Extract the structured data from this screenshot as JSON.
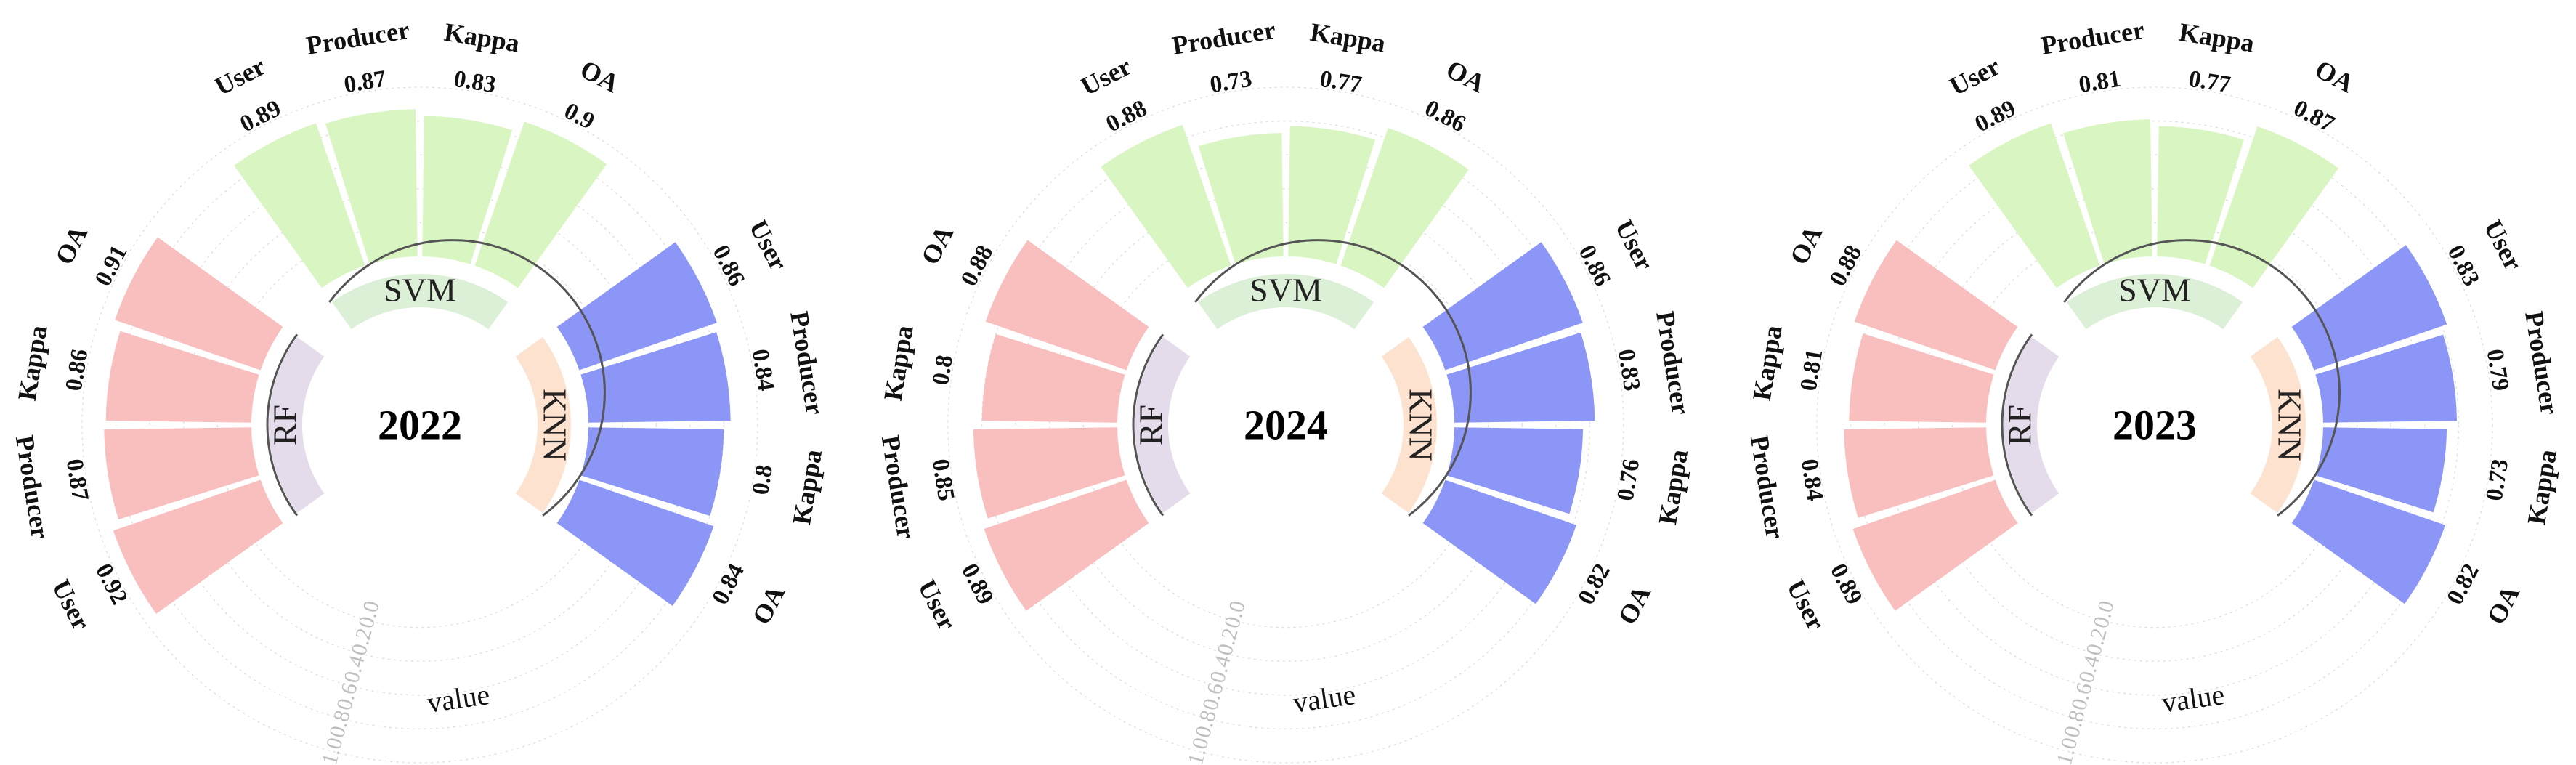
{
  "chart_data": [
    {
      "type": "radial-bar",
      "title": "2022",
      "value_axis": {
        "label": "value",
        "ticks": [
          "0.0",
          "0.2",
          "0.4",
          "0.6",
          "0.8",
          "1.0"
        ],
        "range": [
          0,
          1
        ]
      },
      "groups": [
        {
          "name": "SVM",
          "color": "#d9f5c2",
          "inner_color": "#dcf0d8",
          "bars": [
            {
              "metric": "User",
              "value": 0.89,
              "label": "0.89"
            },
            {
              "metric": "Producer",
              "value": 0.87,
              "label": "0.87"
            },
            {
              "metric": "Kappa",
              "value": 0.83,
              "label": "0.83"
            },
            {
              "metric": "OA",
              "value": 0.9,
              "label": "0.9"
            }
          ]
        },
        {
          "name": "KNN",
          "color": "#8c96f6",
          "inner_color": "#fde2cf",
          "bars": [
            {
              "metric": "User",
              "value": 0.86,
              "label": "0.86"
            },
            {
              "metric": "Producer",
              "value": 0.84,
              "label": "0.84"
            },
            {
              "metric": "Kappa",
              "value": 0.8,
              "label": "0.8"
            },
            {
              "metric": "OA",
              "value": 0.84,
              "label": "0.84"
            }
          ]
        },
        {
          "name": "RF",
          "color": "#f9bebe",
          "inner_color": "#e4dcea",
          "bars": [
            {
              "metric": "User",
              "value": 0.92,
              "label": "0.92"
            },
            {
              "metric": "Producer",
              "value": 0.87,
              "label": "0.87"
            },
            {
              "metric": "Kappa",
              "value": 0.86,
              "label": "0.86"
            },
            {
              "metric": "OA",
              "value": 0.91,
              "label": "0.91"
            }
          ]
        }
      ]
    },
    {
      "type": "radial-bar",
      "title": "2024",
      "value_axis": {
        "label": "value",
        "ticks": [
          "0.0",
          "0.2",
          "0.4",
          "0.6",
          "0.8",
          "1.0"
        ],
        "range": [
          0,
          1
        ]
      },
      "groups": [
        {
          "name": "SVM",
          "color": "#d9f5c2",
          "inner_color": "#dcf0d8",
          "bars": [
            {
              "metric": "User",
              "value": 0.88,
              "label": "0.88"
            },
            {
              "metric": "Producer",
              "value": 0.73,
              "label": "0.73"
            },
            {
              "metric": "Kappa",
              "value": 0.77,
              "label": "0.77"
            },
            {
              "metric": "OA",
              "value": 0.86,
              "label": "0.86"
            }
          ]
        },
        {
          "name": "KNN",
          "color": "#8c96f6",
          "inner_color": "#fde2cf",
          "bars": [
            {
              "metric": "User",
              "value": 0.86,
              "label": "0.86"
            },
            {
              "metric": "Producer",
              "value": 0.83,
              "label": "0.83"
            },
            {
              "metric": "Kappa",
              "value": 0.76,
              "label": "0.76"
            },
            {
              "metric": "OA",
              "value": 0.82,
              "label": "0.82"
            }
          ]
        },
        {
          "name": "RF",
          "color": "#f9bebe",
          "inner_color": "#e4dcea",
          "bars": [
            {
              "metric": "User",
              "value": 0.89,
              "label": "0.89"
            },
            {
              "metric": "Producer",
              "value": 0.85,
              "label": "0.85"
            },
            {
              "metric": "Kappa",
              "value": 0.8,
              "label": "0.8"
            },
            {
              "metric": "OA",
              "value": 0.88,
              "label": "0.88"
            }
          ]
        }
      ]
    },
    {
      "type": "radial-bar",
      "title": "2023",
      "value_axis": {
        "label": "value",
        "ticks": [
          "0.0",
          "0.2",
          "0.4",
          "0.6",
          "0.8",
          "1.0"
        ],
        "range": [
          0,
          1
        ]
      },
      "groups": [
        {
          "name": "SVM",
          "color": "#d9f5c2",
          "inner_color": "#dcf0d8",
          "bars": [
            {
              "metric": "User",
              "value": 0.89,
              "label": "0.89"
            },
            {
              "metric": "Producer",
              "value": 0.81,
              "label": "0.81"
            },
            {
              "metric": "Kappa",
              "value": 0.77,
              "label": "0.77"
            },
            {
              "metric": "OA",
              "value": 0.87,
              "label": "0.87"
            }
          ]
        },
        {
          "name": "KNN",
          "color": "#8c96f6",
          "inner_color": "#fde2cf",
          "bars": [
            {
              "metric": "User",
              "value": 0.83,
              "label": "0.83"
            },
            {
              "metric": "Producer",
              "value": 0.79,
              "label": "0.79"
            },
            {
              "metric": "Kappa",
              "value": 0.73,
              "label": "0.73"
            },
            {
              "metric": "OA",
              "value": 0.82,
              "label": "0.82"
            }
          ]
        },
        {
          "name": "RF",
          "color": "#f9bebe",
          "inner_color": "#e4dcea",
          "bars": [
            {
              "metric": "User",
              "value": 0.89,
              "label": "0.89"
            },
            {
              "metric": "Producer",
              "value": 0.84,
              "label": "0.84"
            },
            {
              "metric": "Kappa",
              "value": 0.81,
              "label": "0.81"
            },
            {
              "metric": "OA",
              "value": 0.88,
              "label": "0.88"
            }
          ]
        }
      ]
    }
  ]
}
